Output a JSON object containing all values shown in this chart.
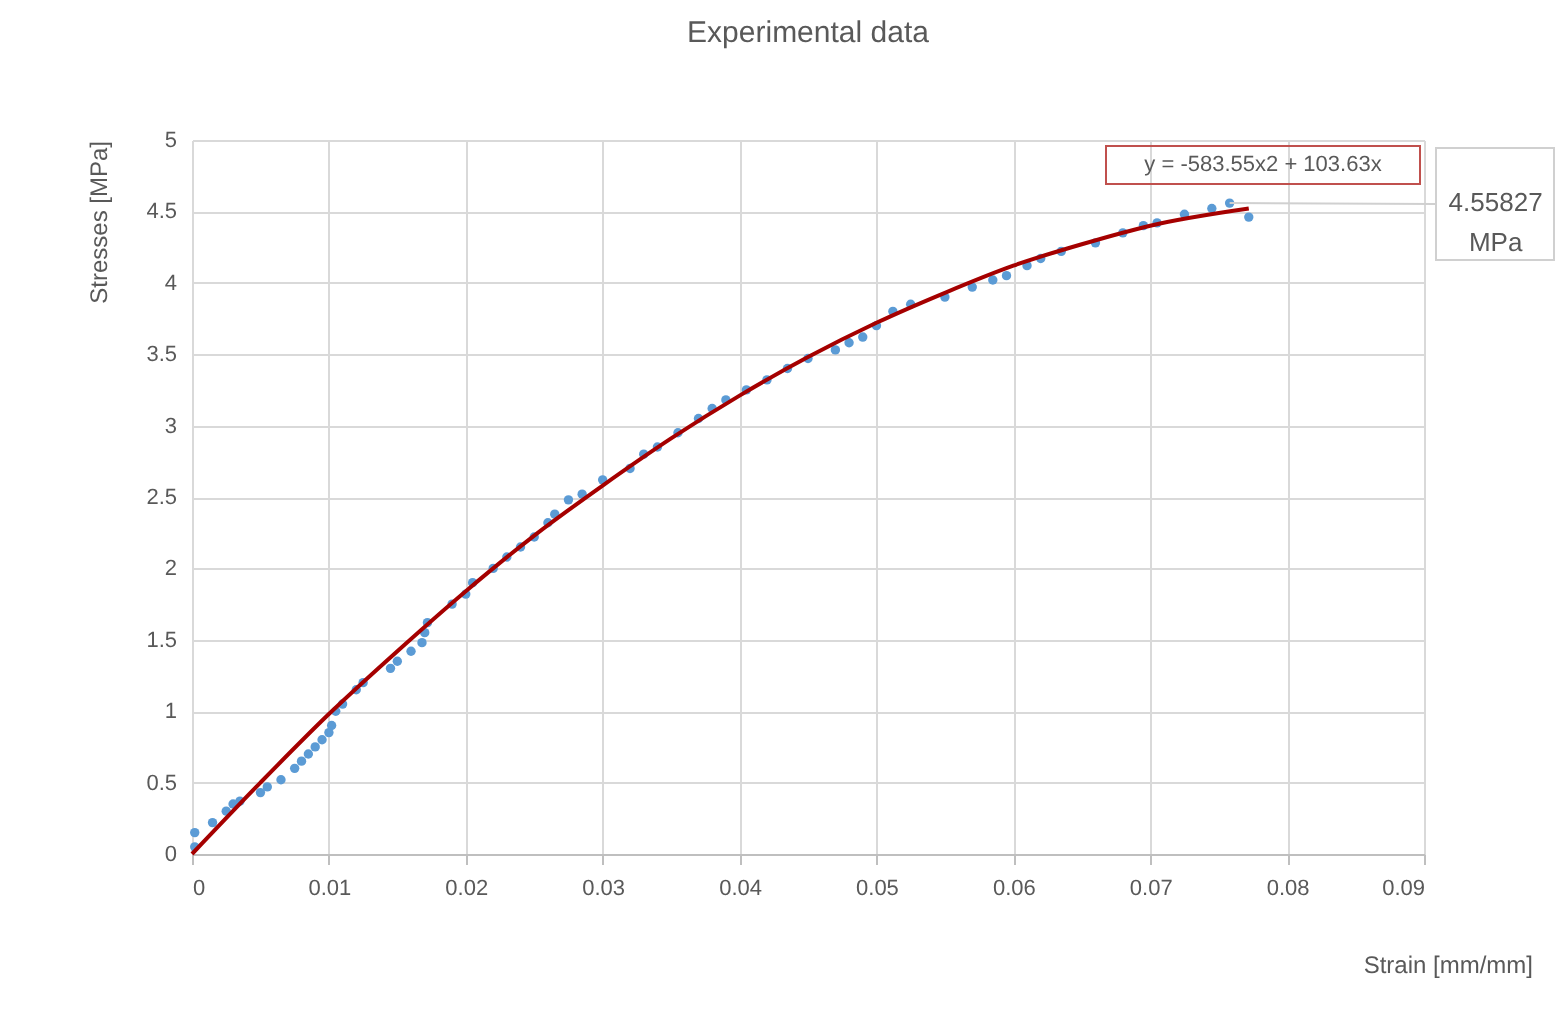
{
  "chart_data": {
    "type": "scatter",
    "title": "Experimental data",
    "xlabel": "Strain  [mm/mm]",
    "ylabel": "Stresses [MPa]",
    "xlim": [
      0,
      0.09
    ],
    "xticks": [
      0,
      0.01,
      0.02,
      0.03,
      0.04,
      0.05,
      0.06,
      0.07,
      0.08,
      0.09
    ],
    "ylim": [
      0,
      5
    ],
    "yticks": [
      0,
      0.5,
      1,
      1.5,
      2,
      2.5,
      3,
      3.5,
      4,
      4.5,
      5
    ],
    "grid": true,
    "marker": "circle",
    "annotations": [
      "y = -583.55x2 + 103.63x",
      {
        "text": "4.55827 MPa",
        "x": 0.0758,
        "y": 4.55827
      }
    ],
    "series": [
      {
        "color": "#5b9bd5",
        "x": [
          0.0002,
          0.0002,
          0.0015,
          0.0025,
          0.003,
          0.0035,
          0.005,
          0.0055,
          0.0065,
          0.0075,
          0.008,
          0.0085,
          0.009,
          0.0095,
          0.01,
          0.0102,
          0.0105,
          0.011,
          0.012,
          0.0125,
          0.0145,
          0.015,
          0.016,
          0.0168,
          0.017,
          0.0172,
          0.019,
          0.02,
          0.0205,
          0.022,
          0.023,
          0.024,
          0.025,
          0.026,
          0.0265,
          0.0275,
          0.0285,
          0.03,
          0.032,
          0.033,
          0.034,
          0.0355,
          0.037,
          0.038,
          0.039,
          0.0405,
          0.042,
          0.0435,
          0.045,
          0.047,
          0.048,
          0.049,
          0.05,
          0.0512,
          0.0525,
          0.055,
          0.057,
          0.0585,
          0.0595,
          0.061,
          0.062,
          0.0635,
          0.066,
          0.068,
          0.0695,
          0.0705,
          0.0725,
          0.0745,
          0.0758,
          0.0772
        ],
        "values": [
          0.05,
          0.15,
          0.22,
          0.3,
          0.35,
          0.37,
          0.43,
          0.47,
          0.52,
          0.6,
          0.65,
          0.7,
          0.75,
          0.8,
          0.85,
          0.9,
          1.0,
          1.05,
          1.15,
          1.2,
          1.3,
          1.35,
          1.42,
          1.48,
          1.55,
          1.62,
          1.75,
          1.82,
          1.9,
          2.0,
          2.08,
          2.15,
          2.22,
          2.32,
          2.38,
          2.48,
          2.52,
          2.62,
          2.7,
          2.8,
          2.85,
          2.95,
          3.05,
          3.12,
          3.18,
          3.25,
          3.32,
          3.4,
          3.47,
          3.53,
          3.58,
          3.62,
          3.7,
          3.8,
          3.85,
          3.9,
          3.97,
          4.02,
          4.05,
          4.12,
          4.17,
          4.22,
          4.28,
          4.35,
          4.4,
          4.42,
          4.48,
          4.52,
          4.55827,
          4.46
        ]
      },
      {
        "type": "line",
        "color": "#a50000",
        "marker": "none",
        "x": [
          0,
          0.005,
          0.01,
          0.015,
          0.02,
          0.025,
          0.03,
          0.035,
          0.04,
          0.045,
          0.05,
          0.055,
          0.06,
          0.065,
          0.07,
          0.0772
        ],
        "values": [
          0,
          0.5,
          0.98,
          1.42,
          1.84,
          2.23,
          2.58,
          2.91,
          3.21,
          3.48,
          3.72,
          3.93,
          4.12,
          4.27,
          4.4,
          4.52
        ]
      }
    ]
  }
}
